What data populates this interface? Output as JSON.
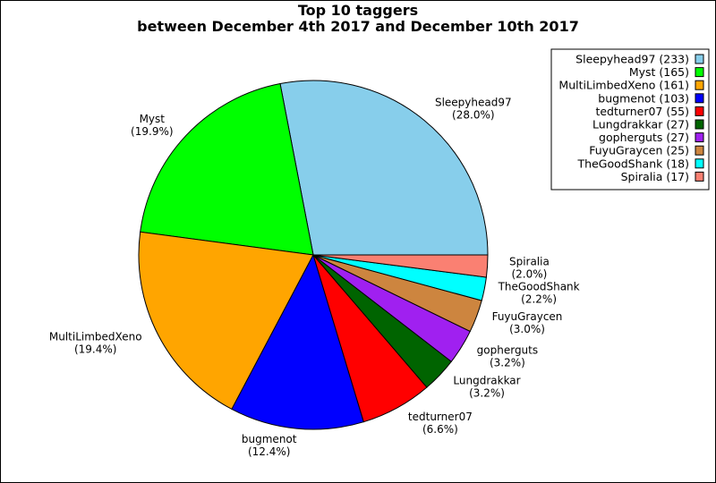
{
  "chart_data": {
    "type": "pie",
    "title_line1": "Top 10 taggers",
    "title_line2": "between December 4th 2017 and December 10th 2017",
    "legend_placement": "top-right",
    "slices": [
      {
        "name": "Sleepyhead97",
        "value": 233,
        "pct_label": "(28.0%)",
        "legend_label": "Sleepyhead97 (233)",
        "color": "#87ceeb"
      },
      {
        "name": "Myst",
        "value": 165,
        "pct_label": "(19.9%)",
        "legend_label": "Myst (165)",
        "color": "#00ff00"
      },
      {
        "name": "MultiLimbedXeno",
        "value": 161,
        "pct_label": "(19.4%)",
        "legend_label": "MultiLimbedXeno (161)",
        "color": "#ffa500"
      },
      {
        "name": "bugmenot",
        "value": 103,
        "pct_label": "(12.4%)",
        "legend_label": "bugmenot (103)",
        "color": "#0000ff"
      },
      {
        "name": "tedturner07",
        "value": 55,
        "pct_label": "(6.6%)",
        "legend_label": "tedturner07 (55)",
        "color": "#ff0000"
      },
      {
        "name": "Lungdrakkar",
        "value": 27,
        "pct_label": "(3.2%)",
        "legend_label": "Lungdrakkar (27)",
        "color": "#006400"
      },
      {
        "name": "gopherguts",
        "value": 27,
        "pct_label": "(3.2%)",
        "legend_label": "gopherguts (27)",
        "color": "#a020f0"
      },
      {
        "name": "FuyuGraycen",
        "value": 25,
        "pct_label": "(3.0%)",
        "legend_label": "FuyuGraycen (25)",
        "color": "#cd853f"
      },
      {
        "name": "TheGoodShank",
        "value": 18,
        "pct_label": "(2.2%)",
        "legend_label": "TheGoodShank (18)",
        "color": "#00ffff"
      },
      {
        "name": "Spiralia",
        "value": 17,
        "pct_label": "(2.0%)",
        "legend_label": "Spiralia (17)",
        "color": "#fa8072"
      }
    ]
  }
}
